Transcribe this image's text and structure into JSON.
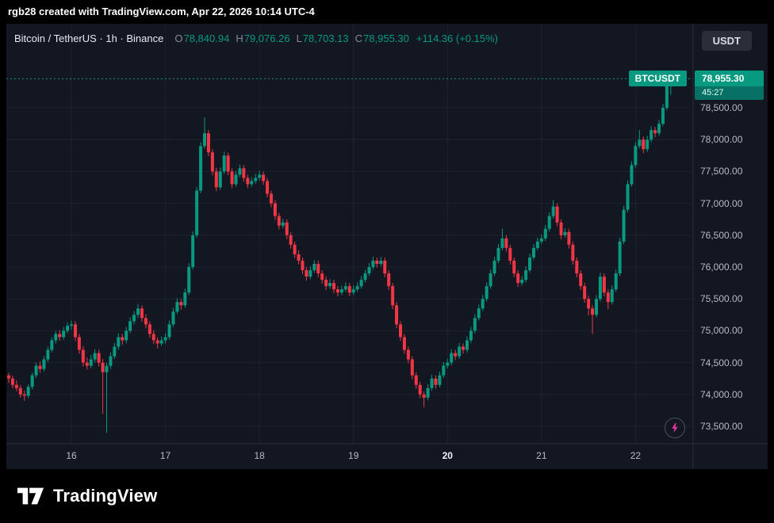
{
  "topbar": {
    "text": "rgb28 created with TradingView.com, Apr 22, 2026 10:14 UTC-4"
  },
  "header": {
    "symbol_title": "Bitcoin / TetherUS · 1h · Binance",
    "ohlc": {
      "o_label": "O",
      "o": "78,840.94",
      "h_label": "H",
      "h": "79,076.26",
      "l_label": "L",
      "l": "78,703.13",
      "c_label": "C",
      "c": "78,955.30",
      "change": "+114.36 (+0.15%)"
    },
    "currency_button": "USDT"
  },
  "price_scale": {
    "badge": {
      "symbol": "BTCUSDT",
      "price": "78,955.30",
      "countdown": "45:27"
    }
  },
  "footer": {
    "brand": "TradingView"
  },
  "chart_data": {
    "type": "candlestick",
    "symbol": "BTCUSDT",
    "title": "Bitcoin / TetherUS · 1h · Binance",
    "interval": "1h",
    "exchange": "Binance",
    "last_price": 78955.3,
    "current_candle": {
      "open": 78840.94,
      "high": 79076.26,
      "low": 78703.13,
      "close": 78955.3
    },
    "change_text": "+114.36 (+0.15%)",
    "colors": {
      "up": "#089981",
      "down": "#f23645"
    },
    "grid": true,
    "legend_position": "top-left",
    "y_axis": {
      "range_top": 79150,
      "range_bottom": 73275,
      "ticks": [
        {
          "value": 78500,
          "label": "78,500.00"
        },
        {
          "value": 78000,
          "label": "78,000.00"
        },
        {
          "value": 77500,
          "label": "77,500.00"
        },
        {
          "value": 77000,
          "label": "77,000.00"
        },
        {
          "value": 76500,
          "label": "76,500.00"
        },
        {
          "value": 76000,
          "label": "76,000.00"
        },
        {
          "value": 75500,
          "label": "75,500.00"
        },
        {
          "value": 75000,
          "label": "75,000.00"
        },
        {
          "value": 74500,
          "label": "74,500.00"
        },
        {
          "value": 74000,
          "label": "74,000.00"
        },
        {
          "value": 73500,
          "label": "73,500.00"
        }
      ]
    },
    "x_axis": {
      "labels": [
        {
          "index": 16,
          "label": "16",
          "emphasis": false
        },
        {
          "index": 40,
          "label": "17",
          "emphasis": false
        },
        {
          "index": 64,
          "label": "18",
          "emphasis": false
        },
        {
          "index": 88,
          "label": "19",
          "emphasis": false
        },
        {
          "index": 112,
          "label": "20",
          "emphasis": true
        },
        {
          "index": 136,
          "label": "21",
          "emphasis": false
        },
        {
          "index": 160,
          "label": "22",
          "emphasis": false
        }
      ]
    },
    "candles": [
      [
        74300,
        74340,
        74180,
        74250
      ],
      [
        74250,
        74300,
        74100,
        74150
      ],
      [
        74150,
        74220,
        74050,
        74100
      ],
      [
        74100,
        74150,
        73950,
        74000
      ],
      [
        74000,
        74060,
        73900,
        73980
      ],
      [
        73980,
        74160,
        73940,
        74120
      ],
      [
        74120,
        74340,
        74080,
        74300
      ],
      [
        74300,
        74500,
        74260,
        74450
      ],
      [
        74450,
        74520,
        74340,
        74400
      ],
      [
        74400,
        74600,
        74360,
        74550
      ],
      [
        74550,
        74750,
        74510,
        74700
      ],
      [
        74700,
        74900,
        74660,
        74850
      ],
      [
        74850,
        75000,
        74800,
        74950
      ],
      [
        74950,
        75010,
        74840,
        74900
      ],
      [
        74900,
        75060,
        74860,
        75000
      ],
      [
        75000,
        75130,
        74960,
        75080
      ],
      [
        75080,
        75160,
        75020,
        75100
      ],
      [
        75100,
        75150,
        74840,
        74900
      ],
      [
        74900,
        74950,
        74640,
        74700
      ],
      [
        74700,
        74760,
        74440,
        74500
      ],
      [
        74500,
        74580,
        74390,
        74450
      ],
      [
        74450,
        74620,
        74410,
        74550
      ],
      [
        74550,
        74710,
        74500,
        74650
      ],
      [
        74650,
        74700,
        74440,
        74500
      ],
      [
        74500,
        74560,
        73700,
        74350
      ],
      [
        74350,
        74500,
        73400,
        74450
      ],
      [
        74450,
        74660,
        74400,
        74600
      ],
      [
        74600,
        74810,
        74560,
        74750
      ],
      [
        74750,
        74960,
        74700,
        74900
      ],
      [
        74900,
        74950,
        74780,
        74850
      ],
      [
        74850,
        75060,
        74800,
        75000
      ],
      [
        75000,
        75210,
        74960,
        75150
      ],
      [
        75150,
        75310,
        75100,
        75250
      ],
      [
        75250,
        75420,
        75200,
        75350
      ],
      [
        75350,
        75400,
        75140,
        75200
      ],
      [
        75200,
        75260,
        75040,
        75100
      ],
      [
        75100,
        75150,
        74890,
        74950
      ],
      [
        74950,
        75010,
        74790,
        74850
      ],
      [
        74850,
        74900,
        74720,
        74800
      ],
      [
        74800,
        74910,
        74760,
        74850
      ],
      [
        74850,
        74960,
        74800,
        74900
      ],
      [
        74900,
        75160,
        74860,
        75100
      ],
      [
        75100,
        75360,
        75060,
        75300
      ],
      [
        75300,
        75510,
        75260,
        75450
      ],
      [
        75450,
        75500,
        75330,
        75400
      ],
      [
        75400,
        75660,
        75360,
        75600
      ],
      [
        75600,
        76060,
        75560,
        76000
      ],
      [
        76000,
        76560,
        75960,
        76500
      ],
      [
        76500,
        77260,
        76460,
        77200
      ],
      [
        77200,
        77960,
        77160,
        77900
      ],
      [
        77900,
        78350,
        77860,
        78100
      ],
      [
        78100,
        78150,
        77740,
        77800
      ],
      [
        77800,
        77850,
        77440,
        77500
      ],
      [
        77500,
        77560,
        77190,
        77250
      ],
      [
        77250,
        77560,
        77210,
        77500
      ],
      [
        77500,
        77810,
        77460,
        77750
      ],
      [
        77750,
        77800,
        77440,
        77500
      ],
      [
        77500,
        77550,
        77240,
        77300
      ],
      [
        77300,
        77510,
        77260,
        77450
      ],
      [
        77450,
        77610,
        77410,
        77550
      ],
      [
        77550,
        77600,
        77340,
        77400
      ],
      [
        77400,
        77450,
        77240,
        77300
      ],
      [
        77300,
        77410,
        77260,
        77350
      ],
      [
        77350,
        77460,
        77310,
        77400
      ],
      [
        77400,
        77510,
        77360,
        77450
      ],
      [
        77450,
        77500,
        77290,
        77350
      ],
      [
        77350,
        77400,
        77090,
        77150
      ],
      [
        77150,
        77200,
        76940,
        77000
      ],
      [
        77000,
        77050,
        76740,
        76800
      ],
      [
        76800,
        76850,
        76590,
        76650
      ],
      [
        76650,
        76760,
        76610,
        76700
      ],
      [
        76700,
        76750,
        76440,
        76500
      ],
      [
        76500,
        76550,
        76290,
        76350
      ],
      [
        76350,
        76400,
        76140,
        76200
      ],
      [
        76200,
        76260,
        76040,
        76100
      ],
      [
        76100,
        76150,
        75890,
        75950
      ],
      [
        75950,
        76000,
        75790,
        75850
      ],
      [
        75850,
        76010,
        75810,
        75950
      ],
      [
        75950,
        76110,
        75910,
        76050
      ],
      [
        76050,
        76100,
        75840,
        75900
      ],
      [
        75900,
        75950,
        75740,
        75800
      ],
      [
        75800,
        75850,
        75640,
        75700
      ],
      [
        75700,
        75810,
        75660,
        75750
      ],
      [
        75750,
        75800,
        75590,
        75650
      ],
      [
        75650,
        75700,
        75540,
        75600
      ],
      [
        75600,
        75710,
        75560,
        75650
      ],
      [
        75650,
        75760,
        75610,
        75700
      ],
      [
        75700,
        75750,
        75540,
        75600
      ],
      [
        75600,
        75710,
        75560,
        75650
      ],
      [
        75650,
        75760,
        75610,
        75700
      ],
      [
        75700,
        75860,
        75660,
        75800
      ],
      [
        75800,
        75960,
        75760,
        75900
      ],
      [
        75900,
        76060,
        75860,
        76000
      ],
      [
        76000,
        76160,
        75960,
        76100
      ],
      [
        76100,
        76150,
        75990,
        76050
      ],
      [
        76050,
        76160,
        76010,
        76100
      ],
      [
        76100,
        76150,
        75840,
        75900
      ],
      [
        75900,
        75950,
        75640,
        75700
      ],
      [
        75700,
        75750,
        75340,
        75400
      ],
      [
        75400,
        75450,
        75040,
        75100
      ],
      [
        75100,
        75150,
        74840,
        74900
      ],
      [
        74900,
        74950,
        74640,
        74700
      ],
      [
        74700,
        74750,
        74490,
        74550
      ],
      [
        74550,
        74600,
        74240,
        74300
      ],
      [
        74300,
        74350,
        74090,
        74150
      ],
      [
        74150,
        74200,
        73940,
        74000
      ],
      [
        74000,
        74050,
        73800,
        73950
      ],
      [
        73950,
        74160,
        73910,
        74100
      ],
      [
        74100,
        74310,
        74060,
        74250
      ],
      [
        74250,
        74300,
        74090,
        74150
      ],
      [
        74150,
        74360,
        74110,
        74300
      ],
      [
        74300,
        74510,
        74260,
        74450
      ],
      [
        74450,
        74560,
        74410,
        74500
      ],
      [
        74500,
        74710,
        74460,
        74650
      ],
      [
        74650,
        74700,
        74540,
        74600
      ],
      [
        74600,
        74810,
        74560,
        74750
      ],
      [
        74750,
        74800,
        74640,
        74700
      ],
      [
        74700,
        74910,
        74660,
        74850
      ],
      [
        74850,
        75060,
        74810,
        75000
      ],
      [
        75000,
        75260,
        74960,
        75200
      ],
      [
        75200,
        75410,
        75160,
        75350
      ],
      [
        75350,
        75560,
        75310,
        75500
      ],
      [
        75500,
        75760,
        75460,
        75700
      ],
      [
        75700,
        75960,
        75660,
        75900
      ],
      [
        75900,
        76160,
        75860,
        76100
      ],
      [
        76100,
        76360,
        76060,
        76300
      ],
      [
        76300,
        76600,
        76260,
        76450
      ],
      [
        76450,
        76500,
        76240,
        76300
      ],
      [
        76300,
        76350,
        76040,
        76100
      ],
      [
        76100,
        76150,
        75840,
        75900
      ],
      [
        75900,
        75950,
        75690,
        75750
      ],
      [
        75750,
        75860,
        75710,
        75800
      ],
      [
        75800,
        76010,
        75760,
        75950
      ],
      [
        75950,
        76210,
        75910,
        76150
      ],
      [
        76150,
        76360,
        76110,
        76300
      ],
      [
        76300,
        76460,
        76260,
        76400
      ],
      [
        76400,
        76510,
        76360,
        76450
      ],
      [
        76450,
        76660,
        76410,
        76600
      ],
      [
        76600,
        76860,
        76560,
        76800
      ],
      [
        76800,
        77050,
        76760,
        76950
      ],
      [
        76950,
        77000,
        76640,
        76700
      ],
      [
        76700,
        76750,
        76440,
        76500
      ],
      [
        76500,
        76610,
        76460,
        76550
      ],
      [
        76550,
        76600,
        76290,
        76350
      ],
      [
        76350,
        76400,
        76040,
        76100
      ],
      [
        76100,
        76150,
        75840,
        75900
      ],
      [
        75900,
        75950,
        75640,
        75700
      ],
      [
        75700,
        75750,
        75440,
        75500
      ],
      [
        75500,
        75550,
        75240,
        75350
      ],
      [
        75350,
        75400,
        74950,
        75250
      ],
      [
        75250,
        75560,
        75210,
        75500
      ],
      [
        75500,
        75910,
        75460,
        75850
      ],
      [
        75850,
        75900,
        75540,
        75600
      ],
      [
        75600,
        75650,
        75340,
        75450
      ],
      [
        75450,
        75710,
        75410,
        75650
      ],
      [
        75650,
        75960,
        75610,
        75900
      ],
      [
        75900,
        76460,
        75860,
        76400
      ],
      [
        76400,
        76960,
        76360,
        76900
      ],
      [
        76900,
        77360,
        76860,
        77300
      ],
      [
        77300,
        77660,
        77260,
        77600
      ],
      [
        77600,
        77960,
        77560,
        77900
      ],
      [
        77900,
        78150,
        77860,
        78000
      ],
      [
        78000,
        78050,
        77790,
        77850
      ],
      [
        77850,
        78060,
        77810,
        78000
      ],
      [
        78000,
        78210,
        77960,
        78150
      ],
      [
        78150,
        78200,
        78040,
        78100
      ],
      [
        78100,
        78310,
        78060,
        78250
      ],
      [
        78250,
        78560,
        78210,
        78500
      ],
      [
        78500,
        78900,
        78460,
        78841
      ],
      [
        78840.94,
        79076.26,
        78703.13,
        78955.3
      ]
    ]
  }
}
